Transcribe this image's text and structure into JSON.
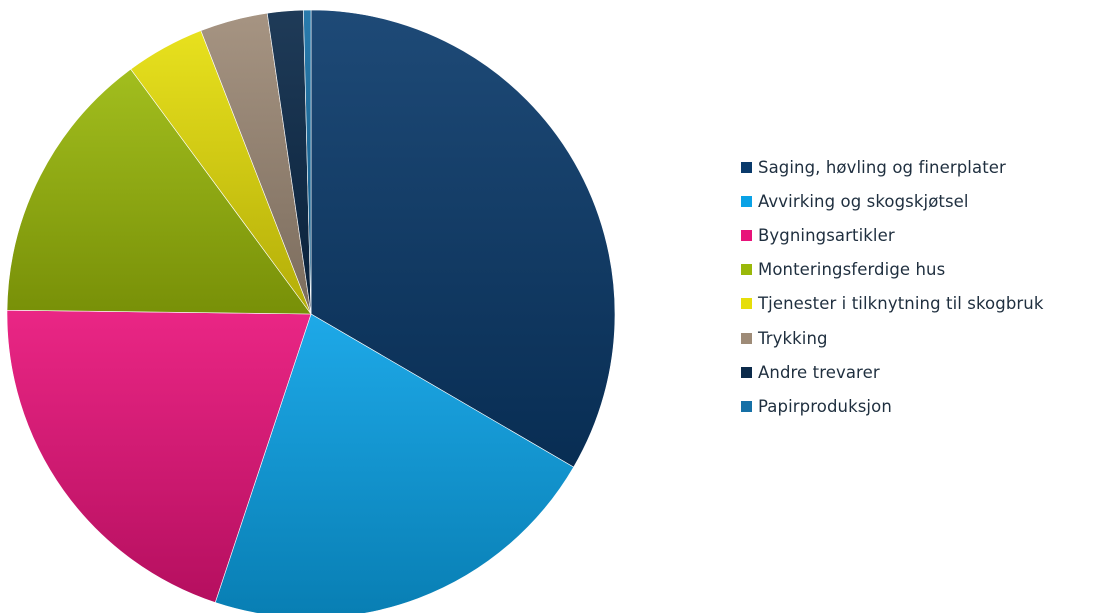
{
  "chart_data": {
    "type": "pie",
    "title": "",
    "legend_position": "right",
    "start_angle_deg": 0,
    "direction": "clockwise",
    "slices": [
      {
        "name": "Saging, høvling og finerplater",
        "value": 33.4,
        "color": "#0a3a6b"
      },
      {
        "name": "Avvirking og skogskjøtsel",
        "value": 21.7,
        "color": "#0aa2e6"
      },
      {
        "name": "Bygningsartikler",
        "value": 20.1,
        "color": "#e8137a"
      },
      {
        "name": "Monteringsferdige hus",
        "value": 14.7,
        "color": "#9ab80a"
      },
      {
        "name": "Tjenester i tilknytning til skogbruk",
        "value": 4.2,
        "color": "#e6de0a"
      },
      {
        "name": "Trykking",
        "value": 3.6,
        "color": "#9e8b77"
      },
      {
        "name": "Andre trevarer",
        "value": 1.9,
        "color": "#0b2a4a"
      },
      {
        "name": "Papirproduksjon",
        "value": 0.4,
        "color": "#1670a6"
      }
    ]
  }
}
